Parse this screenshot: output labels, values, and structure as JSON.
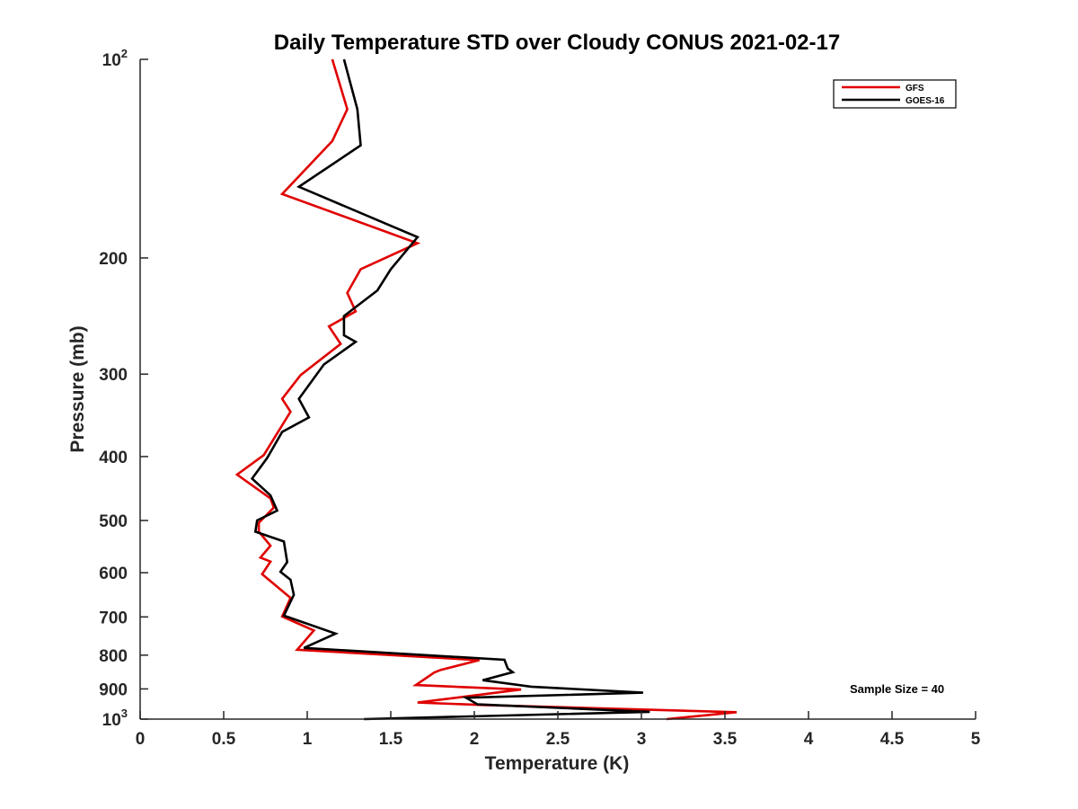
{
  "chart_data": {
    "type": "line",
    "title": "Daily Temperature STD over Cloudy CONUS 2021-02-17",
    "xlabel": "Temperature (K)",
    "ylabel": "Pressure (mb)",
    "xlim": [
      0,
      5
    ],
    "ylim": [
      100,
      1000
    ],
    "yscale": "log",
    "y_reversed": true,
    "grid": false,
    "legend_position": "top-right",
    "x_ticks": [
      0,
      0.5,
      1,
      1.5,
      2,
      2.5,
      3,
      3.5,
      4,
      4.5,
      5
    ],
    "x_tick_labels": [
      "0",
      "0.5",
      "1",
      "1.5",
      "2",
      "2.5",
      "3",
      "3.5",
      "4",
      "4.5",
      "5"
    ],
    "y_ticks": [
      {
        "value": 100,
        "base": "10",
        "exp": "2"
      },
      {
        "value": 200,
        "label": "200"
      },
      {
        "value": 300,
        "label": "300"
      },
      {
        "value": 400,
        "label": "400"
      },
      {
        "value": 500,
        "label": "500"
      },
      {
        "value": 600,
        "label": "600"
      },
      {
        "value": 700,
        "label": "700"
      },
      {
        "value": 800,
        "label": "800"
      },
      {
        "value": 900,
        "label": "900"
      },
      {
        "value": 1000,
        "base": "10",
        "exp": "3"
      }
    ],
    "annotation": "Sample Size = 40",
    "series": [
      {
        "name": "GFS",
        "color": "#e00000",
        "points": [
          [
            1.15,
            100
          ],
          [
            1.24,
            119
          ],
          [
            1.15,
            133
          ],
          [
            0.85,
            160
          ],
          [
            1.66,
            190
          ],
          [
            1.32,
            208
          ],
          [
            1.24,
            226
          ],
          [
            1.29,
            241
          ],
          [
            1.13,
            254
          ],
          [
            1.2,
            270
          ],
          [
            0.96,
            301
          ],
          [
            0.85,
            327
          ],
          [
            0.9,
            342
          ],
          [
            0.74,
            398
          ],
          [
            0.58,
            426
          ],
          [
            0.78,
            463
          ],
          [
            0.8,
            478
          ],
          [
            0.71,
            504
          ],
          [
            0.71,
            520
          ],
          [
            0.78,
            546
          ],
          [
            0.72,
            569
          ],
          [
            0.78,
            577
          ],
          [
            0.73,
            603
          ],
          [
            0.9,
            655
          ],
          [
            0.85,
            699
          ],
          [
            1.04,
            734
          ],
          [
            0.94,
            785
          ],
          [
            2.03,
            814
          ],
          [
            1.8,
            842
          ],
          [
            1.76,
            850
          ],
          [
            1.65,
            888
          ],
          [
            2.28,
            902
          ],
          [
            1.66,
            944
          ],
          [
            2.05,
            952
          ],
          [
            3.57,
            976
          ],
          [
            3.15,
            1000
          ]
        ]
      },
      {
        "name": "GOES-16",
        "color": "#000000",
        "points": [
          [
            1.22,
            100
          ],
          [
            1.3,
            119
          ],
          [
            1.32,
            135
          ],
          [
            0.95,
            156
          ],
          [
            1.66,
            186
          ],
          [
            1.5,
            208
          ],
          [
            1.42,
            224
          ],
          [
            1.22,
            245
          ],
          [
            1.22,
            262
          ],
          [
            1.29,
            268
          ],
          [
            1.1,
            290
          ],
          [
            0.95,
            327
          ],
          [
            1.01,
            349
          ],
          [
            0.85,
            367
          ],
          [
            0.76,
            402
          ],
          [
            0.67,
            432
          ],
          [
            0.78,
            458
          ],
          [
            0.82,
            483
          ],
          [
            0.7,
            500
          ],
          [
            0.69,
            520
          ],
          [
            0.86,
            538
          ],
          [
            0.88,
            578
          ],
          [
            0.84,
            598
          ],
          [
            0.9,
            615
          ],
          [
            0.92,
            648
          ],
          [
            0.86,
            697
          ],
          [
            1.17,
            742
          ],
          [
            0.98,
            780
          ],
          [
            2.18,
            813
          ],
          [
            2.2,
            838
          ],
          [
            2.23,
            849
          ],
          [
            2.05,
            873
          ],
          [
            2.34,
            893
          ],
          [
            3.01,
            912
          ],
          [
            1.95,
            928
          ],
          [
            2.02,
            950
          ],
          [
            3.05,
            975
          ],
          [
            1.34,
            1000
          ]
        ]
      }
    ]
  }
}
